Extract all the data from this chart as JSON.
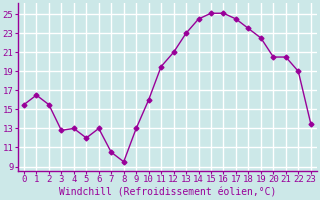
{
  "x": [
    0,
    1,
    2,
    3,
    4,
    5,
    6,
    7,
    8,
    9,
    10,
    11,
    12,
    13,
    14,
    15,
    16,
    17,
    18,
    19,
    20,
    21,
    22,
    23
  ],
  "y": [
    15.5,
    16.5,
    15.5,
    12.8,
    13.0,
    12.0,
    13.0,
    10.5,
    9.5,
    13.0,
    16.0,
    19.5,
    21.0,
    23.0,
    24.5,
    25.1,
    25.1,
    24.5,
    23.5,
    22.5,
    20.5,
    20.5,
    19.0,
    13.5
  ],
  "line_color": "#990099",
  "marker": "D",
  "marker_size": 2.5,
  "line_width": 1.0,
  "bg_color": "#cce8e8",
  "grid_color": "#ffffff",
  "spine_color": "#990099",
  "tick_color": "#990099",
  "label_color": "#990099",
  "xlabel": "Windchill (Refroidissement éolien,°C)",
  "xlabel_fontsize": 7,
  "yticks": [
    9,
    11,
    13,
    15,
    17,
    19,
    21,
    23,
    25
  ],
  "xticks": [
    0,
    1,
    2,
    3,
    4,
    5,
    6,
    7,
    8,
    9,
    10,
    11,
    12,
    13,
    14,
    15,
    16,
    17,
    18,
    19,
    20,
    21,
    22,
    23
  ],
  "ylim": [
    8.5,
    26.2
  ],
  "xlim": [
    -0.5,
    23.5
  ],
  "tick_fontsize": 6.5
}
